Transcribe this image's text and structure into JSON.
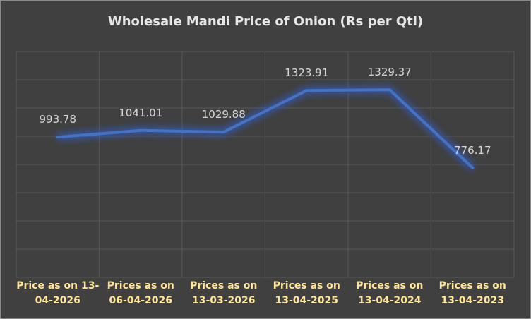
{
  "chart_data": {
    "type": "line",
    "title": "Wholesale Mandi Price of Onion (Rs per Qtl)",
    "categories": [
      "Price as on 13-04-2026",
      "Prices as on 06-04-2026",
      "Prices as on 13-03-2026",
      "Prices as on 13-04-2025",
      "Prices as on 13-04-2024",
      "Prices as on 13-04-2023"
    ],
    "values": [
      993.78,
      1041.01,
      1029.88,
      1323.91,
      1329.37,
      776.17
    ],
    "data_labels": [
      "993.78",
      "1041.01",
      "1029.88",
      "1323.91",
      "1329.37",
      "776.17"
    ],
    "ylim": [
      0,
      1600
    ],
    "grid": true,
    "legend": "none",
    "colors": {
      "line": "#4472c4",
      "glow": "#2f5fd0",
      "gridline": "#595959",
      "data_label": "#d9d9d9",
      "category_label": "#ffe699",
      "title": "#e6e6e6",
      "background": "#404040"
    }
  }
}
